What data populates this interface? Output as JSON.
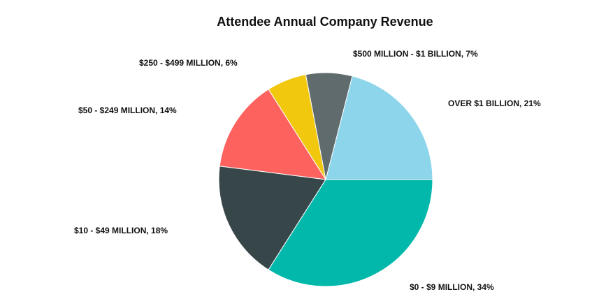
{
  "chart_data": {
    "type": "pie",
    "title": "Attendee Annual Company Revenue",
    "slices": [
      {
        "label": "OVER $1 BILLION",
        "value": 21,
        "display": "OVER $1 BILLION, 21%",
        "color": "#8DD5EB"
      },
      {
        "label": "$0 - $9 MILLION",
        "value": 34,
        "display": "$0 - $9 MILLION, 34%",
        "color": "#01B8AA"
      },
      {
        "label": "$10 - $49 MILLION",
        "value": 18,
        "display": "$10 - $49 MILLION, 18%",
        "color": "#374649"
      },
      {
        "label": "$50 - $249 MILLION",
        "value": 14,
        "display": "$50 - $249 MILLION, 14%",
        "color": "#FD625E"
      },
      {
        "label": "$250 - $499 MILLION",
        "value": 6,
        "display": "$250 - $499 MILLION, 6%",
        "color": "#F2C80F"
      },
      {
        "label": "$500 MILLION - $1 BILLION",
        "value": 7,
        "display": "$500 MILLION - $1 BILLION, 7%",
        "color": "#5F6B6D"
      }
    ],
    "start_angle": "3 o'clock, clockwise"
  }
}
